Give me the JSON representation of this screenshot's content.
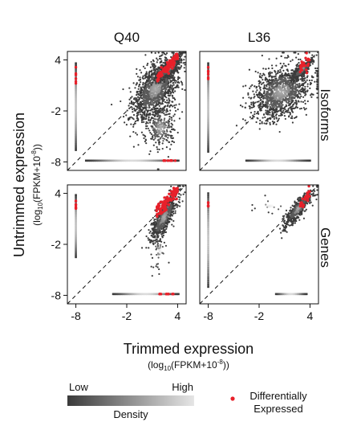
{
  "chart_data": {
    "type": "scatter",
    "facet_columns": [
      "Q40",
      "L36"
    ],
    "facet_rows": [
      "Isoforms",
      "Genes"
    ],
    "xlabel": "Trimmed expression",
    "xlabel_sub": {
      "prefix": "(log",
      "subscript": "10",
      "middle": "(FPKM+10",
      "superscript": "-8",
      "suffix": "))"
    },
    "ylabel": "Untrimmed expression",
    "ylabel_sub": {
      "prefix": "(log",
      "subscript": "10",
      "middle": "(FPKM+10",
      "superscript": "-8",
      "suffix": "))"
    },
    "xlim": [
      -9,
      5
    ],
    "ylim": [
      -9,
      5
    ],
    "x_ticks": [
      "-8",
      "-2",
      "4"
    ],
    "y_ticks": [
      "4",
      "-2",
      "-8"
    ],
    "x_tick_values": [
      -8,
      -2,
      4
    ],
    "y_tick_values": [
      4,
      -2,
      -8
    ],
    "reference_line": "y = x (dashed)",
    "density_legend": {
      "title": "Density",
      "low": "Low",
      "high": "High",
      "colors": [
        "#3a3a3a",
        "#e6e6e6"
      ]
    },
    "point_legend": {
      "label_line1": "Differentially",
      "label_line2": "Expressed",
      "color": "#e8202a"
    },
    "panels": [
      {
        "column": "Q40",
        "row": "Isoforms",
        "gray_clusters": [
          {
            "cx": 1.4,
            "cy": 0.6,
            "sx": 1.3,
            "sy": 1.9,
            "n": 1400,
            "rho": 0.55
          },
          {
            "cx": 2.0,
            "cy": -4.0,
            "sx": 0.9,
            "sy": 1.4,
            "n": 300,
            "rho": 0.1
          },
          {
            "cx": 3.0,
            "cy": 3.0,
            "sx": 0.7,
            "sy": 0.7,
            "n": 500,
            "rho": 0.8
          }
        ],
        "left_strip": {
          "x": -8.0,
          "y_range": [
            -6.6,
            3.6
          ],
          "n": 60
        },
        "bottom_strip": {
          "y": -7.85,
          "x_range": [
            -6.8,
            4.1
          ],
          "n": 70
        },
        "red_points": {
          "x_range": [
            1.6,
            4.1
          ],
          "y_offset": 0.35,
          "spread": 0.35,
          "n": 90,
          "left_strip_y": [
            1.0,
            3.4
          ],
          "bottom_strip_x": [
            2.2,
            3.8
          ]
        }
      },
      {
        "column": "L36",
        "row": "Isoforms",
        "gray_clusters": [
          {
            "cx": 0.6,
            "cy": 0.2,
            "sx": 1.7,
            "sy": 1.6,
            "n": 1300,
            "rho": 0.35
          },
          {
            "cx": 3.0,
            "cy": 2.8,
            "sx": 0.6,
            "sy": 0.6,
            "n": 400,
            "rho": 0.85
          }
        ],
        "left_strip": {
          "x": -8.0,
          "y_range": [
            -6.8,
            3.6
          ],
          "n": 60
        },
        "bottom_strip": {
          "y": -7.85,
          "x_range": [
            -3.5,
            4.0
          ],
          "n": 55
        },
        "red_points": {
          "x_range": [
            2.8,
            4.0
          ],
          "y_offset": 0.1,
          "spread": 0.4,
          "n": 25,
          "left_strip_y": [
            1.5,
            3.6
          ],
          "bottom_strip_x": []
        }
      },
      {
        "column": "Q40",
        "row": "Genes",
        "gray_clusters": [
          {
            "cx": 2.4,
            "cy": 1.2,
            "sx": 0.8,
            "sy": 1.4,
            "n": 700,
            "rho": 0.8
          },
          {
            "cx": 1.9,
            "cy": -2.8,
            "sx": 0.5,
            "sy": 1.3,
            "n": 40,
            "rho": 0.2
          }
        ],
        "left_strip": {
          "x": -8.0,
          "y_range": [
            -3.5,
            3.8
          ],
          "n": 40
        },
        "bottom_strip": {
          "y": -7.85,
          "x_range": [
            -3.6,
            4.1
          ],
          "n": 55
        },
        "red_points": {
          "x_range": [
            1.5,
            4.0
          ],
          "y_offset": 0.3,
          "spread": 0.45,
          "n": 90,
          "left_strip_y": [
            1.8,
            3.3
          ],
          "bottom_strip_x": [
            1.8,
            3.6
          ]
        }
      },
      {
        "column": "L36",
        "row": "Genes",
        "gray_clusters": [
          {
            "cx": 2.6,
            "cy": 2.2,
            "sx": 0.8,
            "sy": 1.0,
            "n": 550,
            "rho": 0.85
          },
          {
            "cx": -0.8,
            "cy": 2.5,
            "sx": 1.2,
            "sy": 0.6,
            "n": 12,
            "rho": 0.0
          }
        ],
        "left_strip": {
          "x": -8.0,
          "y_range": [
            -7.0,
            4.0
          ],
          "n": 45
        },
        "bottom_strip": {
          "y": -7.85,
          "x_range": [
            0.0,
            3.6
          ],
          "n": 25
        },
        "red_points": {
          "x_range": [
            2.8,
            4.0
          ],
          "y_offset": 0.0,
          "spread": 0.4,
          "n": 25,
          "left_strip_y": [
            2.0,
            3.6
          ],
          "bottom_strip_x": []
        }
      }
    ]
  }
}
